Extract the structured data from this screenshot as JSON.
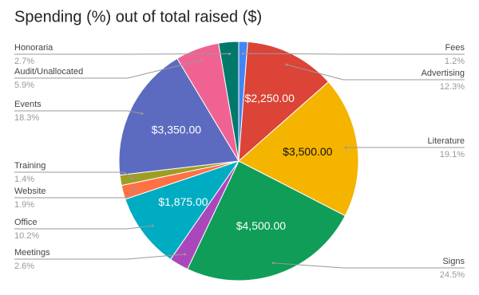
{
  "chart_data": {
    "type": "pie",
    "title": "Spending (%) out of total raised ($)",
    "categories": [
      "Fees",
      "Advertising",
      "Literature",
      "Signs",
      "Meetings",
      "Office",
      "Website",
      "Training",
      "Events",
      "Audit/Unallocated",
      "Honoraria"
    ],
    "values": [
      1.2,
      12.3,
      19.1,
      24.5,
      2.6,
      10.2,
      1.9,
      1.4,
      18.3,
      5.9,
      2.7
    ],
    "value_labels": [
      "1.2%",
      "12.3%",
      "19.1%",
      "24.5%",
      "2.6%",
      "10.2%",
      "1.9%",
      "1.4%",
      "18.3%",
      "5.9%",
      "2.7%"
    ],
    "amounts": [
      null,
      2250,
      3500,
      4500,
      null,
      1875,
      null,
      null,
      3350,
      null,
      null
    ],
    "amount_labels": [
      null,
      "$2,250.00",
      "$3,500.00",
      "$4,500.00",
      null,
      "$1,875.00",
      null,
      null,
      "$3,350.00",
      null,
      null
    ],
    "colors": [
      "#4285f4",
      "#db4437",
      "#f4b400",
      "#0f9d58",
      "#ab47bc",
      "#00acc1",
      "#ff7043",
      "#9e9d24",
      "#5c6bc0",
      "#f06292",
      "#00796b"
    ]
  }
}
